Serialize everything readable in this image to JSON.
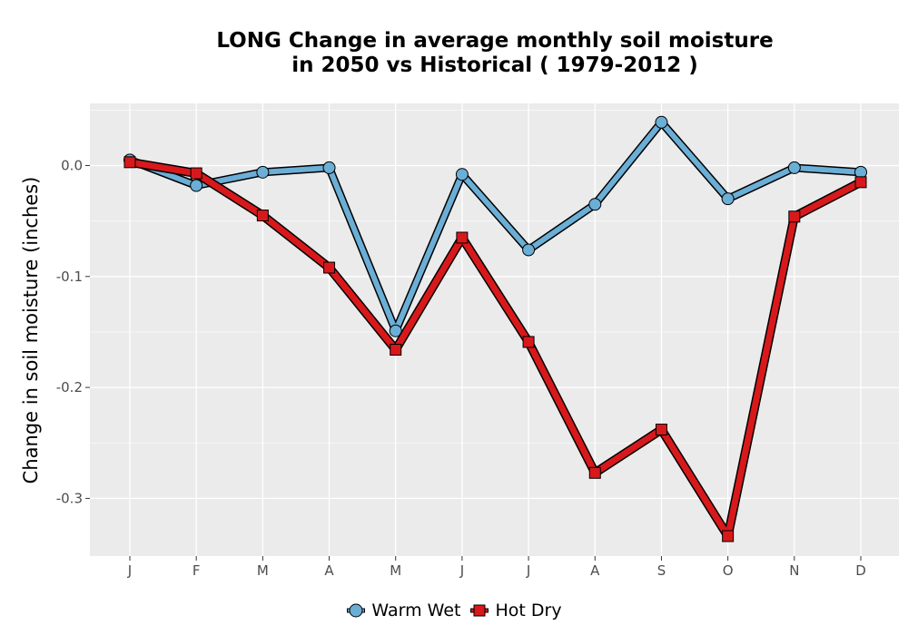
{
  "chart_data": {
    "type": "line",
    "title_lines": [
      "LONG  Change in average monthly soil moisture",
      "in 2050 vs Historical ( 1979-2012 )"
    ],
    "xlabel": "",
    "ylabel": "Change in soil moisture (inches)",
    "categories": [
      "J",
      "F",
      "M",
      "A",
      "M",
      "J",
      "J",
      "A",
      "S",
      "O",
      "N",
      "D"
    ],
    "ylim": [
      -0.352,
      0.056
    ],
    "yticks": [
      0.0,
      -0.1,
      -0.2,
      -0.3
    ],
    "ytick_labels": [
      "0.0",
      "-0.1",
      "-0.2",
      "-0.3"
    ],
    "grid": true,
    "legend_position": "bottom",
    "series": [
      {
        "name": "Warm Wet",
        "marker": "circle",
        "color": "#6baed6",
        "values": [
          0.005,
          -0.018,
          -0.006,
          -0.002,
          -0.149,
          -0.008,
          -0.076,
          -0.035,
          0.039,
          -0.03,
          -0.002,
          -0.006
        ]
      },
      {
        "name": "Hot Dry",
        "marker": "square",
        "color": "#d7191c",
        "values": [
          0.003,
          -0.007,
          -0.045,
          -0.092,
          -0.166,
          -0.065,
          -0.159,
          -0.277,
          -0.238,
          -0.334,
          -0.046,
          -0.015
        ]
      }
    ]
  }
}
